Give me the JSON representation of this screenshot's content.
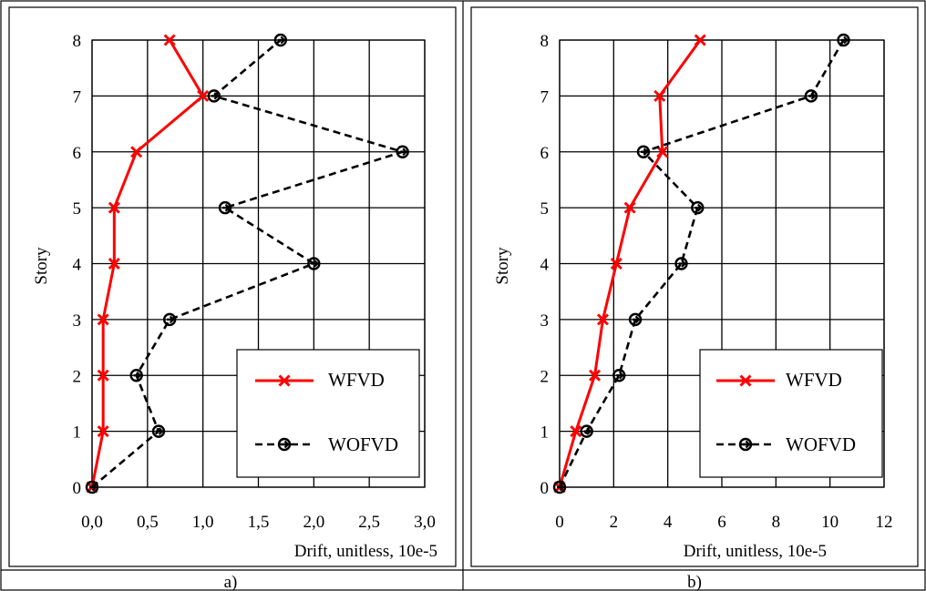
{
  "chart_data": [
    {
      "type": "line",
      "caption": "a)",
      "xlabel": "Drift, unitless, 10e-5",
      "ylabel": "Story",
      "xlim": [
        0,
        3
      ],
      "ylim": [
        0,
        8
      ],
      "x_tick_labels": [
        "0,0",
        "0,5",
        "1,0",
        "1,5",
        "2,0",
        "2,5",
        "3,0"
      ],
      "y_tick_labels": [
        "0",
        "1",
        "2",
        "3",
        "4",
        "5",
        "6",
        "7",
        "8"
      ],
      "grid": true,
      "legend_position": "bottom-right",
      "series": [
        {
          "name": "WFVD",
          "style": "solid",
          "marker": "x",
          "color": "#ff0000",
          "points": [
            [
              0.0,
              0
            ],
            [
              0.1,
              1
            ],
            [
              0.1,
              2
            ],
            [
              0.1,
              3
            ],
            [
              0.2,
              4
            ],
            [
              0.2,
              5
            ],
            [
              0.4,
              6
            ],
            [
              1.0,
              7
            ],
            [
              0.7,
              8
            ]
          ]
        },
        {
          "name": "WOFVD",
          "style": "dashed",
          "marker": "circle-arrow",
          "color": "#000000",
          "points": [
            [
              0.0,
              0
            ],
            [
              0.6,
              1
            ],
            [
              0.4,
              2
            ],
            [
              0.7,
              3
            ],
            [
              2.0,
              4
            ],
            [
              1.2,
              5
            ],
            [
              2.8,
              6
            ],
            [
              1.1,
              7
            ],
            [
              1.7,
              8
            ]
          ]
        }
      ]
    },
    {
      "type": "line",
      "caption": "b)",
      "xlabel": "Drift, unitless, 10e-5",
      "ylabel": "Story",
      "xlim": [
        0,
        12
      ],
      "ylim": [
        0,
        8
      ],
      "x_tick_labels": [
        "0",
        "2",
        "4",
        "6",
        "8",
        "10",
        "12"
      ],
      "y_tick_labels": [
        "0",
        "1",
        "2",
        "3",
        "4",
        "5",
        "6",
        "7",
        "8"
      ],
      "grid": true,
      "legend_position": "bottom-right",
      "series": [
        {
          "name": "WFVD",
          "style": "solid",
          "marker": "x",
          "color": "#ff0000",
          "points": [
            [
              0.0,
              0
            ],
            [
              0.6,
              1
            ],
            [
              1.3,
              2
            ],
            [
              1.6,
              3
            ],
            [
              2.1,
              4
            ],
            [
              2.6,
              5
            ],
            [
              3.8,
              6
            ],
            [
              3.7,
              7
            ],
            [
              5.2,
              8
            ]
          ]
        },
        {
          "name": "WOFVD",
          "style": "dashed",
          "marker": "circle-arrow",
          "color": "#000000",
          "points": [
            [
              0.0,
              0
            ],
            [
              1.0,
              1
            ],
            [
              2.2,
              2
            ],
            [
              2.8,
              3
            ],
            [
              4.5,
              4
            ],
            [
              5.1,
              5
            ],
            [
              3.1,
              6
            ],
            [
              9.3,
              7
            ],
            [
              10.5,
              8
            ]
          ]
        }
      ]
    }
  ]
}
